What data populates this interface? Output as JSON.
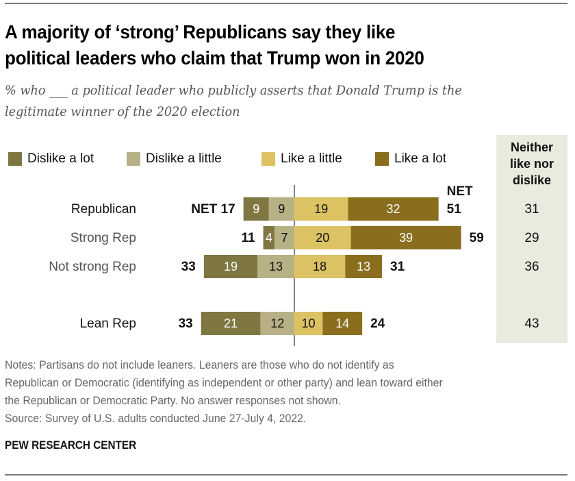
{
  "title_lines": [
    "A majority of ‘strong’ Republicans say they like",
    "political leaders who claim that Trump won in 2020"
  ],
  "subtitle_lines": [
    "% who ___ a political leader who publicly asserts that Donald Trump is the",
    "legitimate winner of the 2020 election"
  ],
  "colors": {
    "dislike_a_lot": "#7f7742",
    "dislike_a_little": "#b8b186",
    "like_a_little": "#dcc262",
    "like_a_lot": "#8a6e1e",
    "neither_column_bg": "#ebeadf",
    "center_line": "#333333"
  },
  "chart_data": {
    "type": "bar",
    "orientation": "horizontal-diverging",
    "title": "A majority of ‘strong’ Republicans say they like political leaders who claim that Trump won in 2020",
    "subtitle": "% who ___ a political leader who publicly asserts that Donald Trump is the legitimate winner of the 2020 election",
    "categories": [
      "Republican",
      "Strong Rep",
      "Not strong Rep",
      "Lean Rep"
    ],
    "category_styles": [
      "primary",
      "subgroup",
      "subgroup",
      "primary"
    ],
    "series": [
      {
        "name": "Dislike a lot",
        "side": "negative",
        "values": [
          9,
          4,
          19,
          21
        ]
      },
      {
        "name": "Dislike a little",
        "side": "negative",
        "values": [
          9,
          7,
          13,
          12
        ]
      },
      {
        "name": "Like a little",
        "side": "positive",
        "values": [
          19,
          20,
          18,
          10
        ]
      },
      {
        "name": "Like a lot",
        "side": "positive",
        "values": [
          32,
          39,
          13,
          14
        ]
      }
    ],
    "net_dislike": [
      17,
      11,
      33,
      33
    ],
    "net_like": [
      51,
      59,
      31,
      24
    ],
    "net_label_prefix": "NET",
    "neither": {
      "header_lines": [
        "Neither",
        "like nor",
        "dislike"
      ],
      "values": [
        31,
        29,
        36,
        43
      ]
    },
    "legend": [
      "Dislike a lot",
      "Dislike a little",
      "Like a little",
      "Like a lot"
    ],
    "legend_position": "top",
    "grid": false,
    "xlim": [
      -40,
      70
    ]
  },
  "notes_lines": [
    "Notes: Partisans do not include leaners. Leaners are those who do not identify as",
    "Republican or Democratic (identifying as independent or other party) and lean toward either",
    "the Republican or Democratic Party. No answer responses not shown.",
    "Source: Survey of U.S. adults conducted June 27-July 4, 2022."
  ],
  "brand": "PEW RESEARCH CENTER"
}
